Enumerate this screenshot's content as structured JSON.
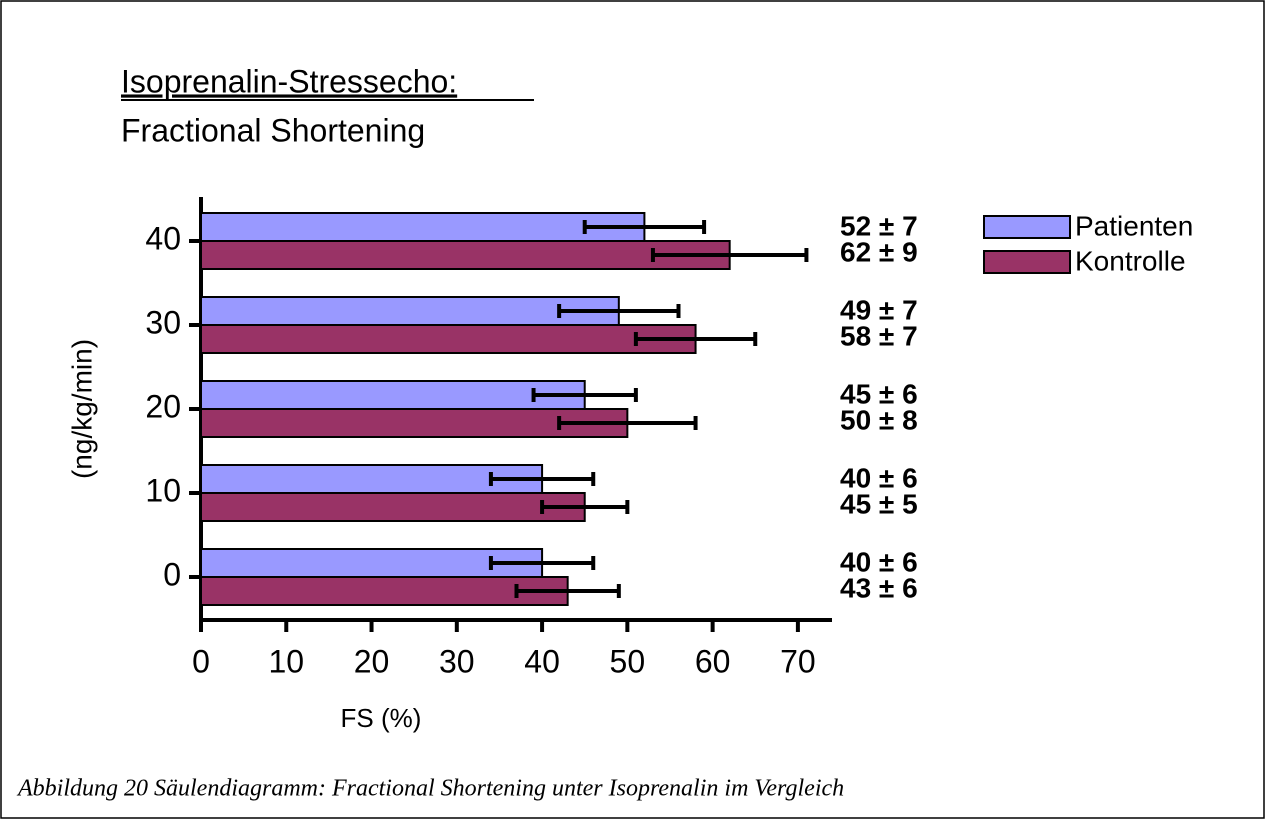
{
  "chart_data": {
    "type": "hbar",
    "title": "Isoprenalin-Stressecho:",
    "subtitle": "Fractional Shortening",
    "x_label": "FS (%)",
    "y_label": "(ng/kg/min)",
    "caption": "Abbildung 20 Säulendiagramm: Fractional Shortening unter Isoprenalin im Vergleich",
    "categories": [
      "0",
      "10",
      "20",
      "30",
      "40"
    ],
    "series": [
      {
        "name": "Patienten",
        "color": "#9999ff",
        "values": [
          40,
          40,
          45,
          49,
          52
        ],
        "errors": [
          6,
          6,
          6,
          7,
          7
        ],
        "value_labels": [
          "40 ± 6",
          "40 ± 6",
          "45 ± 6",
          "49 ± 7",
          "52 ± 7"
        ]
      },
      {
        "name": "Kontrolle",
        "color": "#993366",
        "values": [
          43,
          45,
          50,
          58,
          62
        ],
        "errors": [
          6,
          5,
          8,
          7,
          9
        ],
        "value_labels": [
          "43 ± 6",
          "45 ± 5",
          "50 ± 8",
          "58 ± 7",
          "62 ± 9"
        ]
      }
    ],
    "xlim": [
      0,
      74
    ],
    "xticks": [
      0,
      10,
      20,
      30,
      40,
      50,
      60,
      70
    ],
    "legend": "right"
  }
}
